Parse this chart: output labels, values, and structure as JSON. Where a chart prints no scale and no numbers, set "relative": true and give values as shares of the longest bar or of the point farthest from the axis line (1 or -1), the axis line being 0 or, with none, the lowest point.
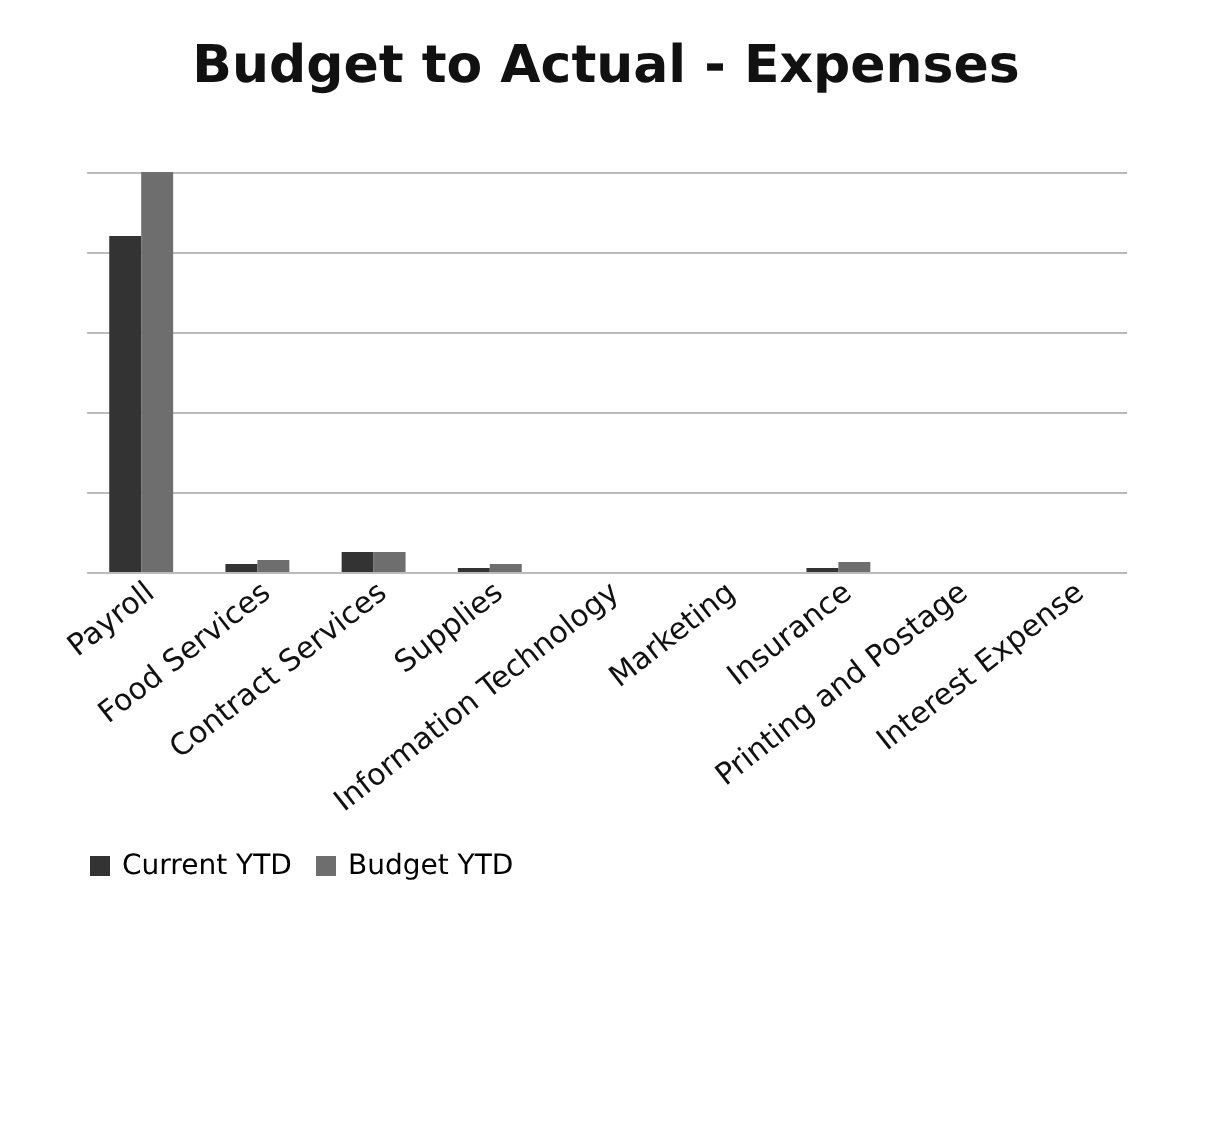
{
  "chart_data": {
    "type": "bar",
    "title": "Budget to Actual - Expenses",
    "relative": true,
    "grid": "y",
    "legend": "bottom",
    "categories": [
      "Payroll",
      "Food Services",
      "Contract Services",
      "Supplies",
      "Information Technology",
      "Marketing",
      "Insurance",
      "Printing and Postage",
      "Interest Expense"
    ],
    "series": [
      {
        "name": "Current YTD",
        "color": "#333333",
        "values": [
          0.84,
          0.02,
          0.05,
          0.01,
          0,
          0,
          0.01,
          0,
          0
        ]
      },
      {
        "name": "Budget YTD",
        "color": "#6e6e6e",
        "values": [
          1,
          0.03,
          0.05,
          0.02,
          0,
          0,
          0.025,
          0,
          0
        ]
      }
    ]
  }
}
